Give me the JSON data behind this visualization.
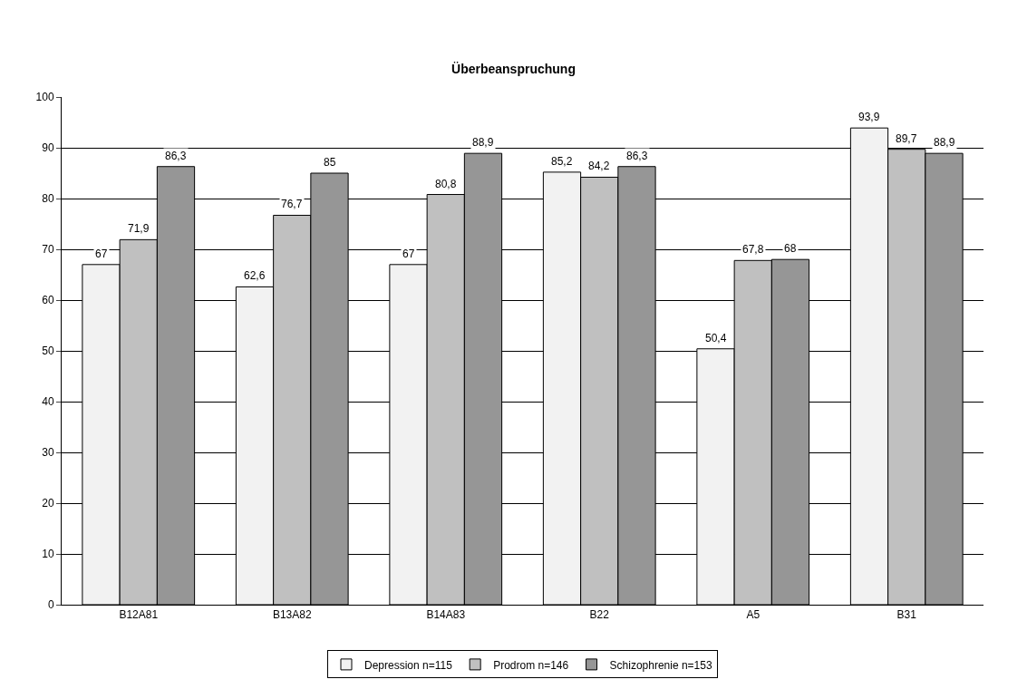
{
  "chart_data": {
    "type": "bar",
    "title": "Überbeanspruchung",
    "categories": [
      "B12A81",
      "B13A82",
      "B14A83",
      "B22",
      "A5",
      "B31"
    ],
    "series": [
      {
        "name": "Depression n=115",
        "color": "#f2f2f2",
        "values": [
          67,
          62.6,
          67,
          85.2,
          50.4,
          93.9
        ],
        "value_labels": [
          "67",
          "62,6",
          "67",
          "85,2",
          "50,4",
          "93,9"
        ]
      },
      {
        "name": "Prodrom n=146",
        "color": "#c0c0c0",
        "values": [
          71.9,
          76.7,
          80.8,
          84.2,
          67.8,
          89.7
        ],
        "value_labels": [
          "71,9",
          "76,7",
          "80,8",
          "84,2",
          "67,8",
          "89,7"
        ]
      },
      {
        "name": "Schizophrenie n=153",
        "color": "#969696",
        "values": [
          86.3,
          85,
          88.9,
          86.3,
          68,
          88.9
        ],
        "value_labels": [
          "86,3",
          "85",
          "88,9",
          "86,3",
          "68",
          "88,9"
        ]
      }
    ],
    "ylim": [
      0,
      100
    ],
    "yticks": [
      0,
      10,
      20,
      30,
      40,
      50,
      60,
      70,
      80,
      90,
      100
    ],
    "grid": "y",
    "legend": "bottom"
  }
}
